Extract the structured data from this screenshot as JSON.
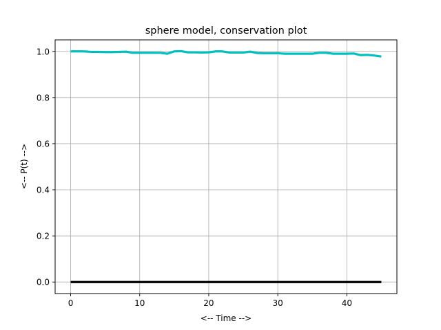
{
  "chart_data": {
    "type": "line",
    "title": "sphere model, conservation plot",
    "xlabel": "<-- Time -->",
    "ylabel": "<-- P(t) -->",
    "xlim": [
      -2.25,
      47.25
    ],
    "ylim": [
      -0.05,
      1.05
    ],
    "xticks": [
      0,
      10,
      20,
      30,
      40
    ],
    "yticks": [
      0.0,
      0.2,
      0.4,
      0.6,
      0.8,
      1.0
    ],
    "xtick_labels": [
      "0",
      "10",
      "20",
      "30",
      "40"
    ],
    "ytick_labels": [
      "0.0",
      "0.2",
      "0.4",
      "0.6",
      "0.8",
      "1.0"
    ],
    "grid": true,
    "series": [
      {
        "color": "#00bfbf",
        "x": [
          0,
          1,
          2,
          3,
          4,
          5,
          6,
          7,
          8,
          9,
          10,
          11,
          12,
          13,
          14,
          15,
          16,
          17,
          18,
          19,
          20,
          21,
          22,
          23,
          24,
          25,
          26,
          27,
          28,
          29,
          30,
          31,
          32,
          33,
          34,
          35,
          36,
          37,
          38,
          39,
          40,
          41,
          42,
          43,
          44,
          45
        ],
        "y": [
          1.0,
          1.0,
          1.0,
          0.998,
          0.998,
          0.997,
          0.997,
          0.998,
          0.999,
          0.994,
          0.994,
          0.994,
          0.994,
          0.994,
          0.99,
          1.0,
          1.001,
          0.996,
          0.996,
          0.995,
          0.996,
          1.0,
          1.0,
          0.995,
          0.995,
          0.995,
          0.999,
          0.993,
          0.992,
          0.992,
          0.992,
          0.99,
          0.99,
          0.99,
          0.99,
          0.99,
          0.994,
          0.994,
          0.99,
          0.99,
          0.99,
          0.991,
          0.984,
          0.985,
          0.982,
          0.978
        ]
      },
      {
        "color": "#000000",
        "x": [
          0,
          45
        ],
        "y": [
          0.0,
          0.0
        ]
      }
    ]
  }
}
